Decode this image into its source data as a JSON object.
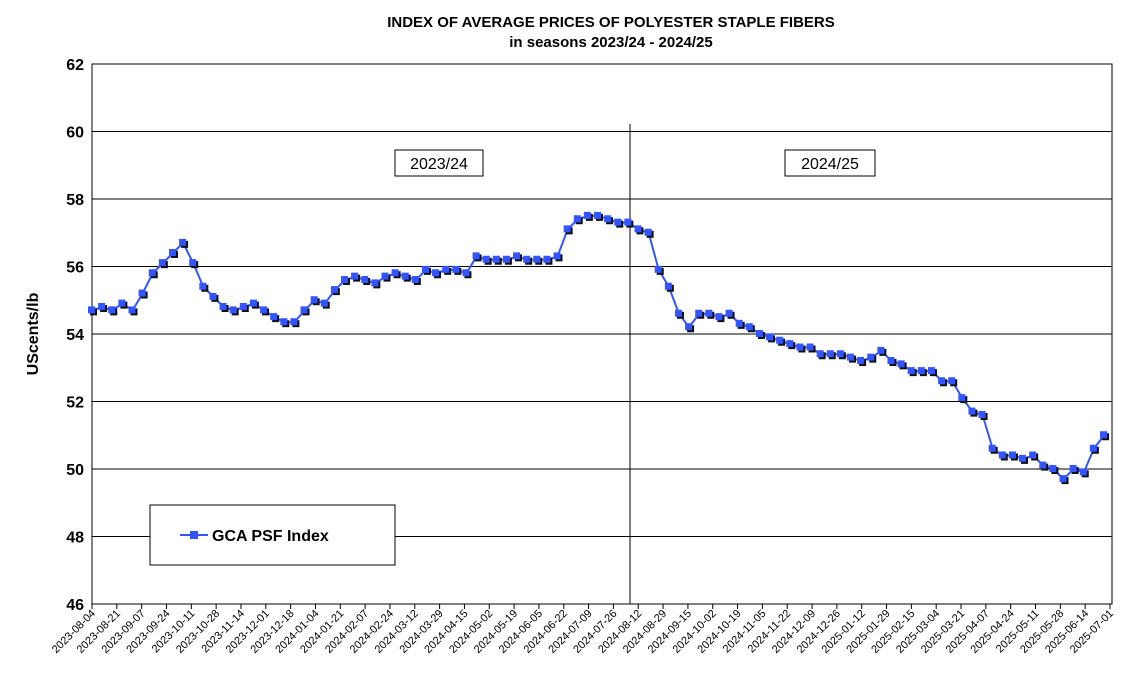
{
  "chart_data": {
    "type": "line",
    "title": "INDEX OF AVERAGE PRICES OF POLYESTER STAPLE FIBERS",
    "subtitle": "in seasons 2023/24 - 2024/25",
    "y_label": "UScents/lb",
    "annotations": [
      "2023/24",
      "2024/25"
    ],
    "xticks": [
      "2023-08-04",
      "2023-08-21",
      "2023-09-07",
      "2023-09-24",
      "2023-10-11",
      "2023-10-28",
      "2023-11-14",
      "2023-12-01",
      "2023-12-18",
      "2024-01-04",
      "2024-01-21",
      "2024-02-07",
      "2024-02-24",
      "2024-03-12",
      "2024-03-29",
      "2024-04-15",
      "2024-05-02",
      "2024-05-19",
      "2024-06-05",
      "2024-06-22",
      "2024-07-09",
      "2024-07-26",
      "2024-08-12",
      "2024-08-29",
      "2024-09-15",
      "2024-10-02",
      "2024-10-19",
      "2024-11-05",
      "2024-11-22",
      "2024-12-09",
      "2024-12-26",
      "2025-01-12",
      "2025-01-29",
      "2025-02-15",
      "2025-03-04",
      "2025-03-21",
      "2025-04-07",
      "2025-04-24",
      "2025-05-11",
      "2025-05-28",
      "2025-06-14",
      "2025-07-01"
    ],
    "series": [
      {
        "name": "GCA PSF Index",
        "color": "#3355ff",
        "values": [
          54.7,
          54.8,
          54.7,
          54.9,
          54.7,
          55.2,
          55.8,
          56.1,
          56.4,
          56.7,
          56.1,
          55.4,
          55.1,
          54.8,
          54.7,
          54.8,
          54.9,
          54.7,
          54.5,
          54.35,
          54.35,
          54.7,
          55.0,
          54.9,
          55.3,
          55.6,
          55.7,
          55.6,
          55.5,
          55.7,
          55.8,
          55.7,
          55.6,
          55.9,
          55.8,
          55.9,
          55.9,
          55.8,
          56.3,
          56.2,
          56.2,
          56.2,
          56.3,
          56.2,
          56.2,
          56.2,
          56.3,
          57.1,
          57.4,
          57.5,
          57.5,
          57.4,
          57.3,
          57.3,
          57.1,
          57.0,
          55.9,
          55.4,
          54.6,
          54.2,
          54.6,
          54.6,
          54.5,
          54.6,
          54.3,
          54.2,
          54.0,
          53.9,
          53.8,
          53.7,
          53.6,
          53.6,
          53.4,
          53.4,
          53.4,
          53.3,
          53.2,
          53.3,
          53.5,
          53.2,
          53.1,
          52.9,
          52.9,
          52.9,
          52.6,
          52.6,
          52.1,
          51.7,
          51.6,
          50.6,
          50.4,
          50.4,
          50.3,
          50.4,
          50.1,
          50.0,
          49.7,
          50.0,
          49.9,
          50.6,
          51.0
        ]
      }
    ],
    "ylim": [
      46,
      62
    ],
    "yticks": [
      46,
      48,
      50,
      52,
      54,
      56,
      58,
      60,
      62
    ],
    "grid": true,
    "legend": "lower left"
  }
}
